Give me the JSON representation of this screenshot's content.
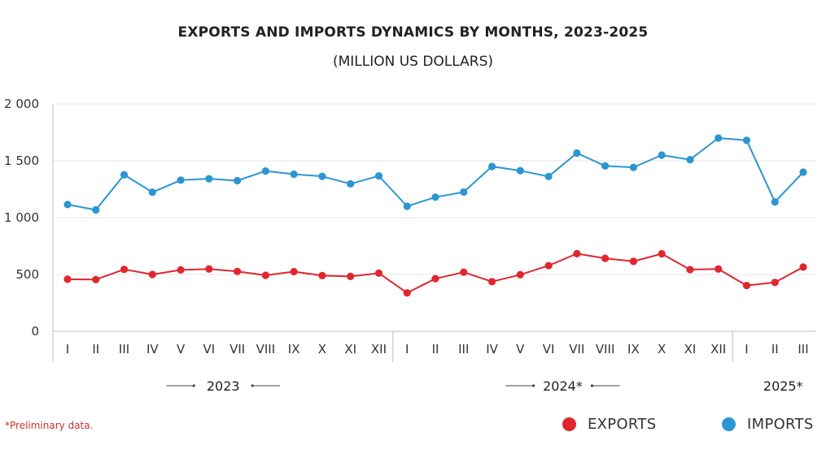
{
  "title": "EXPORTS AND IMPORTS DYNAMICS BY MONTHS, 2023-2025",
  "subtitle": "(MILLION US DOLLARS)",
  "footnote": "*Preliminary data.",
  "legend": [
    {
      "label": "EXPORTS",
      "color": "#e0262e"
    },
    {
      "label": "IMPORTS",
      "color": "#2b96d1"
    }
  ],
  "chart_data": {
    "type": "line",
    "title": "EXPORTS AND IMPORTS DYNAMICS BY MONTHS, 2023-2025",
    "subtitle": "(MILLION US DOLLARS)",
    "xlabel": "",
    "ylabel": "",
    "ylim": [
      0,
      2000
    ],
    "yticks": [
      0,
      500,
      1000,
      1500,
      2000
    ],
    "ytick_labels": [
      "0",
      "500",
      "1 000",
      "1 500",
      "2 000"
    ],
    "grid": true,
    "legend_position": "bottom-right",
    "groups": [
      {
        "label": "2023",
        "months": [
          "I",
          "II",
          "III",
          "IV",
          "V",
          "VI",
          "VII",
          "VIII",
          "IX",
          "X",
          "XI",
          "XII"
        ]
      },
      {
        "label": "2024*",
        "months": [
          "I",
          "II",
          "III",
          "IV",
          "V",
          "VI",
          "VII",
          "VIII",
          "IX",
          "X",
          "XI",
          "XII"
        ]
      },
      {
        "label": "2025*",
        "months": [
          "I",
          "II",
          "III"
        ]
      }
    ],
    "series": [
      {
        "name": "EXPORTS",
        "color": "#e0262e",
        "values": [
          458,
          455,
          545,
          500,
          540,
          548,
          527,
          493,
          525,
          490,
          483,
          512,
          338,
          463,
          520,
          437,
          498,
          578,
          683,
          642,
          615,
          682,
          543,
          548,
          403,
          430,
          565
        ]
      },
      {
        "name": "IMPORTS",
        "color": "#2b96d1",
        "values": [
          1115,
          1068,
          1377,
          1223,
          1330,
          1342,
          1325,
          1410,
          1382,
          1363,
          1297,
          1367,
          1100,
          1180,
          1225,
          1450,
          1413,
          1362,
          1568,
          1455,
          1442,
          1550,
          1510,
          1700,
          1680,
          1138,
          1400
        ]
      }
    ]
  }
}
